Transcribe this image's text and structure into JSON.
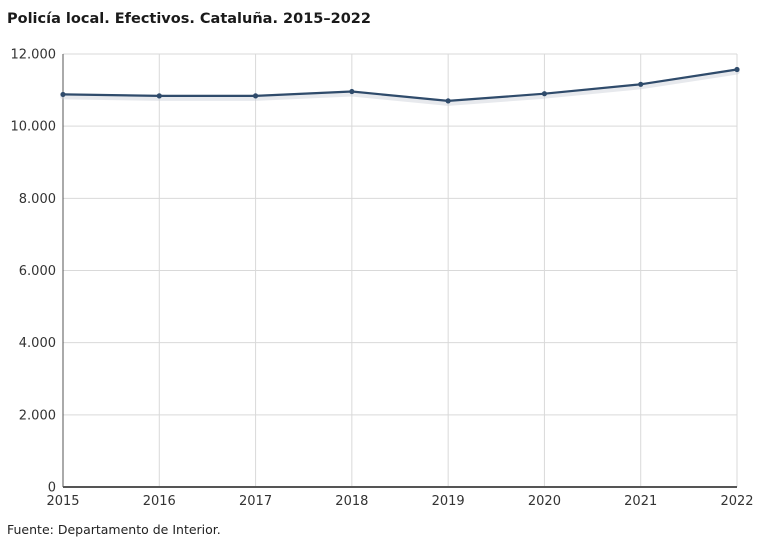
{
  "title": "Policía local. Efectivos. Cataluña. 2015–2022",
  "source": "Fuente: Departamento de Interior.",
  "colors": {
    "line": "#2f4b6b",
    "grid": "#d9d9d9",
    "axis": "#555555",
    "tick_text": "#333333"
  },
  "chart_data": {
    "type": "line",
    "x": [
      2015,
      2016,
      2017,
      2018,
      2019,
      2020,
      2021,
      2022
    ],
    "x_tick_labels": [
      "2015",
      "2016",
      "2017",
      "2018",
      "2019",
      "2020",
      "2021",
      "2022"
    ],
    "series": [
      {
        "values": [
          10880,
          10840,
          10840,
          10960,
          10700,
          10900,
          11160,
          11570
        ]
      }
    ],
    "ylim": [
      0,
      12000
    ],
    "y_ticks": [
      0,
      2000,
      4000,
      6000,
      8000,
      10000,
      12000
    ],
    "y_tick_labels": [
      "0",
      "2.000",
      "4.000",
      "6.000",
      "8.000",
      "10.000",
      "12.000"
    ],
    "xlabel": "",
    "ylabel": "",
    "grid": true,
    "legend": "none"
  }
}
